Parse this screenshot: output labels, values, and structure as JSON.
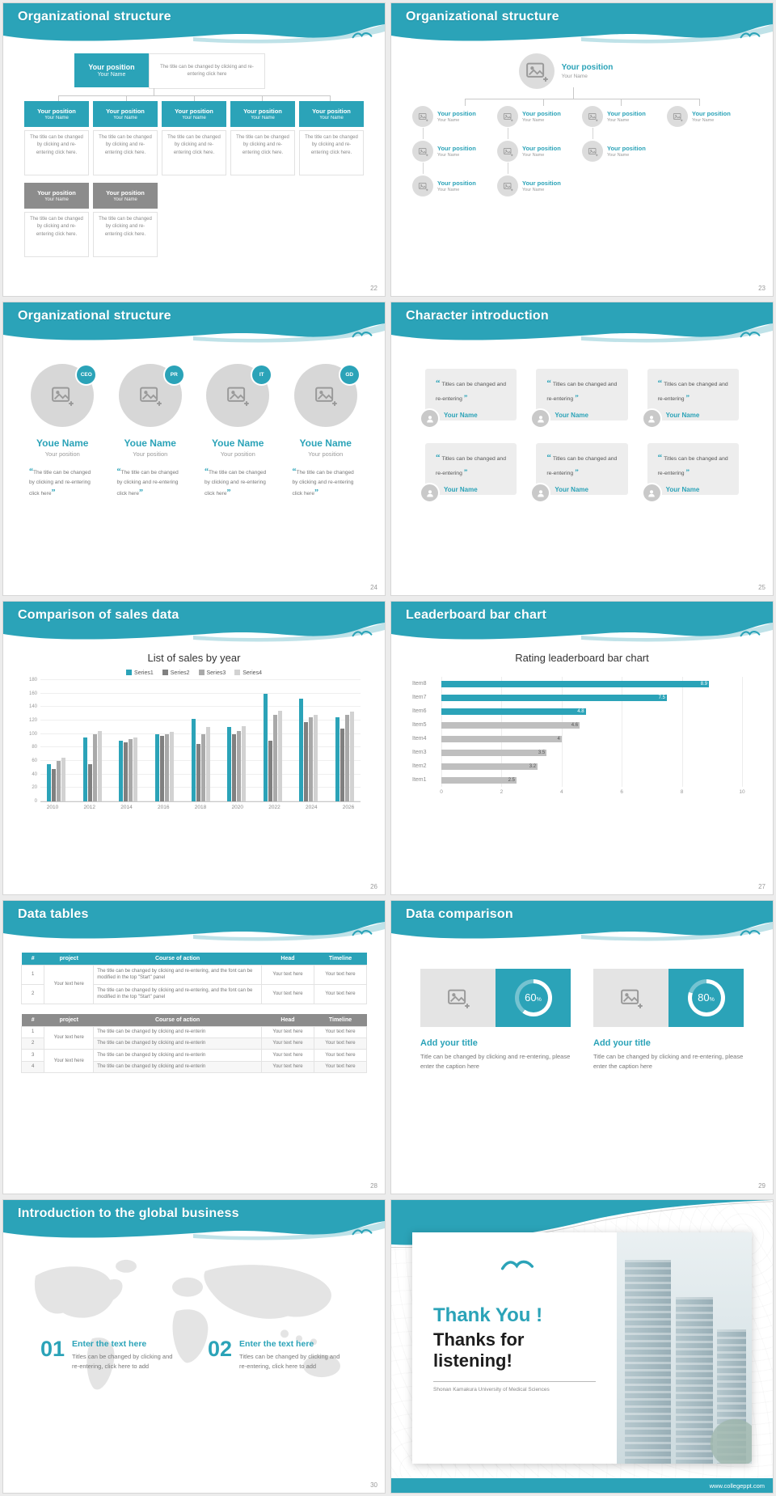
{
  "colors": {
    "accent": "#2BA3B8",
    "accent_light": "#BFE2E8",
    "gray_box": "#8C8C8C",
    "series_gray_dark": "#808080",
    "series_gray_mid": "#A9A9A9",
    "series_gray_light": "#D2D2D2"
  },
  "shared": {
    "quote_open": "“",
    "quote_close": "”"
  },
  "slides": {
    "s22": {
      "title": "Organizational structure",
      "page": "22",
      "box_position": "Your position",
      "box_name": "Your Name",
      "top_caption": "The title can be changed by clicking and re-entering click here",
      "caption": "The title can be changed by clicking and re-entering click here."
    },
    "s23": {
      "title": "Organizational structure",
      "page": "23",
      "position": "Your position",
      "name": "Your Name"
    },
    "s24": {
      "title": "Organizational structure",
      "page": "24",
      "badges": [
        "CEO",
        "PR",
        "IT",
        "GD"
      ],
      "name": "Youe Name",
      "position": "Your position",
      "caption": "The title can be changed by clicking and re-entering click here"
    },
    "s25": {
      "title": "Character introduction",
      "page": "25",
      "card_text": "Titles can be changed and re-entering",
      "card_name": "Your Name"
    },
    "s26": {
      "title": "Comparison of sales data",
      "page": "26",
      "chart_data": {
        "type": "bar",
        "title": "List of sales by year",
        "xlabel": "",
        "ylabel": "",
        "categories": [
          "2010",
          "2012",
          "2014",
          "2016",
          "2018",
          "2020",
          "2022",
          "2024",
          "2026"
        ],
        "series": [
          {
            "name": "Series1",
            "color": "#2BA3B8",
            "values": [
              55,
              95,
              90,
              100,
              122,
              110,
              160,
              152,
              125
            ]
          },
          {
            "name": "Series2",
            "color": "#808080",
            "values": [
              48,
              55,
              88,
              97,
              85,
              100,
              90,
              118,
              108
            ]
          },
          {
            "name": "Series3",
            "color": "#A9A9A9",
            "values": [
              60,
              100,
              92,
              100,
              100,
              104,
              128,
              125,
              128
            ]
          },
          {
            "name": "Series4",
            "color": "#D2D2D2",
            "values": [
              65,
              105,
              95,
              103,
              110,
              112,
              135,
              128,
              133
            ]
          }
        ],
        "ylim": [
          0,
          180
        ],
        "ytick_step": 20,
        "grid": true,
        "legend_position": "top"
      }
    },
    "s27": {
      "title": "Leaderboard bar chart",
      "page": "27",
      "chart_data": {
        "type": "bar",
        "orientation": "horizontal",
        "title": "Rating leaderboard bar chart",
        "xlabel": "",
        "ylabel": "",
        "categories": [
          "Item8",
          "Item7",
          "Item6",
          "Item5",
          "Item4",
          "Item3",
          "Item2",
          "Item1"
        ],
        "values": [
          8.9,
          7.5,
          4.8,
          4.6,
          4,
          3.5,
          3.2,
          2.5
        ],
        "colors": [
          "#2BA3B8",
          "#2BA3B8",
          "#2BA3B8",
          "#BFBFBF",
          "#BFBFBF",
          "#BFBFBF",
          "#BFBFBF",
          "#BFBFBF"
        ],
        "xlim": [
          0,
          10
        ],
        "xticks": [
          0,
          2,
          4,
          6,
          8,
          10
        ],
        "grid": true,
        "legend_position": "none"
      }
    },
    "s28": {
      "title": "Data tables",
      "page": "28",
      "table1": {
        "headers": [
          "#",
          "project",
          "Course of action",
          "Head",
          "Timeline"
        ],
        "project_cell": "Your text here",
        "rows": [
          {
            "num": "1",
            "course": "The title can be changed by clicking and re-entering, and the font can be modified in the top \"Start\" panel",
            "head": "Your text here",
            "timeline": "Your text here"
          },
          {
            "num": "2",
            "course": "The title can be changed by clicking and re-entering, and the font can be modified in the top \"Start\" panel",
            "head": "Your text here",
            "timeline": "Your text here"
          }
        ]
      },
      "table2": {
        "headers": [
          "#",
          "project",
          "Course of action",
          "Head",
          "Timeline"
        ],
        "project_cell_a": "Your text here",
        "project_cell_b": "Your text here",
        "rows": [
          {
            "num": "1",
            "course": "The title can be changed by clicking and re-enterin",
            "head": "Your text here",
            "timeline": "Your text here"
          },
          {
            "num": "2",
            "course": "The title can be changed by clicking and re-enterin",
            "head": "Your text here",
            "timeline": "Your text here"
          },
          {
            "num": "3",
            "course": "The title can be changed by clicking and re-enterin",
            "head": "Your text here",
            "timeline": "Your text here"
          },
          {
            "num": "4",
            "course": "The title can be changed by clicking and re-enterin",
            "head": "Your text here",
            "timeline": "Your text here"
          }
        ]
      }
    },
    "s29": {
      "title": "Data comparison",
      "page": "29",
      "percent_sign": "%",
      "items": [
        {
          "percent": 60,
          "percent_label": "60",
          "heading": "Add your title",
          "caption": "Title can be changed by clicking and re-entering, please enter the caption here"
        },
        {
          "percent": 80,
          "percent_label": "80",
          "heading": "Add your title",
          "caption": "Title can be changed by clicking and re-entering, please enter the caption here"
        }
      ]
    },
    "s30": {
      "title": "Introduction to the global business",
      "page": "30",
      "items": [
        {
          "num": "01",
          "heading": "Enter the text here",
          "caption": "Titles can be changed by clicking and re-entering, click here to add"
        },
        {
          "num": "02",
          "heading": "Enter the text here",
          "caption": "Titles can be changed by clicking and re-entering, click here to add"
        }
      ]
    },
    "thanks": {
      "title_accent": "Thank You !",
      "title_main": "Thanks for listening!",
      "subtitle": "Shonan Kamakura University of Medical Sciences",
      "footer_url": "www.collegeppt.com"
    }
  }
}
